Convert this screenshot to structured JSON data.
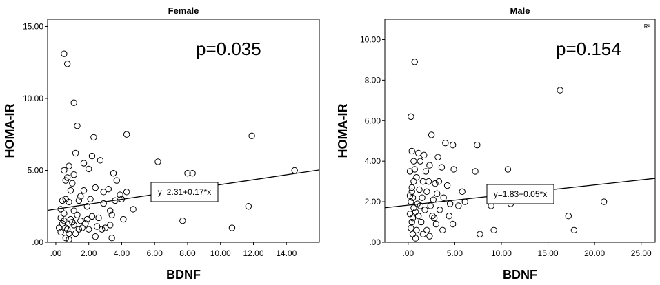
{
  "chart_data": [
    {
      "type": "scatter",
      "title": "Female",
      "xlabel": "BDNF",
      "ylabel": "HOMA-IR",
      "xlim": [
        -0.5,
        16
      ],
      "ylim": [
        0,
        15.5
      ],
      "xticks": [
        0,
        2,
        4,
        6,
        8,
        10,
        12,
        14
      ],
      "xtick_labels": [
        ".00",
        "2.00",
        "4.00",
        "6.00",
        "8.00",
        "10.00",
        "12.00",
        "14.00"
      ],
      "yticks": [
        0,
        5,
        10,
        15
      ],
      "ytick_labels": [
        ".00",
        "5.00",
        "10.00",
        "15.00"
      ],
      "annotation": "p=0.035",
      "fit_label": "y=2.31+0.17*x",
      "fit": {
        "intercept": 2.31,
        "slope": 0.17
      },
      "points": [
        [
          0.5,
          13.1
        ],
        [
          0.7,
          12.4
        ],
        [
          1.1,
          9.7
        ],
        [
          1.3,
          8.1
        ],
        [
          2.3,
          7.3
        ],
        [
          4.3,
          7.5
        ],
        [
          11.9,
          7.4
        ],
        [
          1.2,
          6.2
        ],
        [
          2.2,
          6.0
        ],
        [
          2.7,
          5.7
        ],
        [
          6.2,
          5.6
        ],
        [
          1.7,
          5.5
        ],
        [
          0.8,
          5.3
        ],
        [
          0.5,
          5.0
        ],
        [
          2.0,
          5.1
        ],
        [
          3.5,
          4.8
        ],
        [
          8.0,
          4.8
        ],
        [
          8.3,
          4.8
        ],
        [
          14.5,
          5.0
        ],
        [
          1.1,
          4.7
        ],
        [
          0.7,
          4.5
        ],
        [
          0.6,
          4.3
        ],
        [
          3.7,
          4.3
        ],
        [
          1.0,
          4.1
        ],
        [
          2.4,
          3.8
        ],
        [
          3.2,
          3.7
        ],
        [
          0.9,
          3.6
        ],
        [
          1.7,
          3.6
        ],
        [
          2.9,
          3.5
        ],
        [
          3.9,
          3.3
        ],
        [
          4.3,
          3.5
        ],
        [
          4.0,
          3.0
        ],
        [
          3.6,
          2.9
        ],
        [
          0.4,
          2.9
        ],
        [
          0.6,
          3.0
        ],
        [
          1.4,
          2.9
        ],
        [
          1.5,
          3.2
        ],
        [
          2.1,
          3.0
        ],
        [
          0.8,
          2.8
        ],
        [
          2.9,
          2.7
        ],
        [
          1.9,
          2.5
        ],
        [
          0.3,
          2.3
        ],
        [
          1.1,
          2.2
        ],
        [
          3.3,
          2.2
        ],
        [
          4.7,
          2.3
        ],
        [
          0.5,
          2.0
        ],
        [
          1.3,
          1.9
        ],
        [
          2.2,
          1.8
        ],
        [
          3.4,
          1.9
        ],
        [
          11.7,
          2.5
        ],
        [
          0.3,
          1.7
        ],
        [
          0.9,
          1.6
        ],
        [
          1.9,
          1.6
        ],
        [
          4.1,
          1.6
        ],
        [
          7.7,
          1.5
        ],
        [
          0.4,
          1.3
        ],
        [
          1.1,
          1.2
        ],
        [
          1.8,
          1.3
        ],
        [
          2.5,
          1.1
        ],
        [
          3.3,
          1.2
        ],
        [
          10.7,
          1.0
        ],
        [
          0.2,
          1.0
        ],
        [
          0.6,
          1.0
        ],
        [
          1.4,
          0.9
        ],
        [
          2.0,
          0.9
        ],
        [
          0.3,
          0.7
        ],
        [
          0.8,
          0.6
        ],
        [
          1.2,
          0.6
        ],
        [
          0.6,
          0.3
        ],
        [
          2.4,
          0.4
        ],
        [
          3.4,
          0.3
        ],
        [
          0.8,
          0.2
        ],
        [
          1.6,
          1.0
        ],
        [
          2.8,
          0.9
        ],
        [
          0.5,
          1.5
        ],
        [
          1.0,
          1.4
        ],
        [
          1.5,
          1.5
        ],
        [
          2.6,
          1.7
        ],
        [
          3.0,
          1.0
        ],
        [
          0.7,
          0.9
        ]
      ]
    },
    {
      "type": "scatter",
      "title": "Male",
      "xlabel": "BDNF",
      "ylabel": "HOMA-IR",
      "xlim": [
        -2.5,
        26.5
      ],
      "ylim": [
        0,
        11
      ],
      "xticks": [
        0,
        5,
        10,
        15,
        20,
        25
      ],
      "xtick_labels": [
        ".00",
        "5.00",
        "10.00",
        "15.00",
        "20.00",
        "25.00"
      ],
      "yticks": [
        0,
        2,
        4,
        6,
        8,
        10
      ],
      "ytick_labels": [
        ".00",
        "2.00",
        "4.00",
        "6.00",
        "8.00",
        "10.00"
      ],
      "annotation": "p=0.154",
      "corner_label": "R²",
      "fit_label": "y=1.83+0.05*x",
      "fit": {
        "intercept": 1.83,
        "slope": 0.05
      },
      "points": [
        [
          0.7,
          8.9
        ],
        [
          16.3,
          7.5
        ],
        [
          0.3,
          6.2
        ],
        [
          2.5,
          5.3
        ],
        [
          4.0,
          4.9
        ],
        [
          4.8,
          4.8
        ],
        [
          7.4,
          4.8
        ],
        [
          0.4,
          4.5
        ],
        [
          1.1,
          4.4
        ],
        [
          1.7,
          4.3
        ],
        [
          3.2,
          4.2
        ],
        [
          0.6,
          4.0
        ],
        [
          1.3,
          4.0
        ],
        [
          2.3,
          3.8
        ],
        [
          3.6,
          3.7
        ],
        [
          4.9,
          3.6
        ],
        [
          10.7,
          3.6
        ],
        [
          7.2,
          3.5
        ],
        [
          0.2,
          3.5
        ],
        [
          0.9,
          3.2
        ],
        [
          1.6,
          3.0
        ],
        [
          2.2,
          3.0
        ],
        [
          2.9,
          2.9
        ],
        [
          4.2,
          2.8
        ],
        [
          0.4,
          2.7
        ],
        [
          1.2,
          2.6
        ],
        [
          2.0,
          2.5
        ],
        [
          3.1,
          2.4
        ],
        [
          5.8,
          2.5
        ],
        [
          0.5,
          2.2
        ],
        [
          1.5,
          2.2
        ],
        [
          2.7,
          2.1
        ],
        [
          3.8,
          2.2
        ],
        [
          0.3,
          2.0
        ],
        [
          1.0,
          1.9
        ],
        [
          2.4,
          1.8
        ],
        [
          4.5,
          1.9
        ],
        [
          6.1,
          2.0
        ],
        [
          11.0,
          1.9
        ],
        [
          21.0,
          2.0
        ],
        [
          0.6,
          1.7
        ],
        [
          1.8,
          1.6
        ],
        [
          3.4,
          1.6
        ],
        [
          8.9,
          1.8
        ],
        [
          0.2,
          1.4
        ],
        [
          1.1,
          1.3
        ],
        [
          2.6,
          1.3
        ],
        [
          4.4,
          1.3
        ],
        [
          5.4,
          1.8
        ],
        [
          0.4,
          1.0
        ],
        [
          1.4,
          1.0
        ],
        [
          3.0,
          0.9
        ],
        [
          4.8,
          0.9
        ],
        [
          17.2,
          1.3
        ],
        [
          0.3,
          0.7
        ],
        [
          0.9,
          0.6
        ],
        [
          2.0,
          0.6
        ],
        [
          3.7,
          0.6
        ],
        [
          9.2,
          0.6
        ],
        [
          17.8,
          0.6
        ],
        [
          0.5,
          0.4
        ],
        [
          1.6,
          0.4
        ],
        [
          7.7,
          0.4
        ],
        [
          0.8,
          0.2
        ],
        [
          2.3,
          0.3
        ],
        [
          0.4,
          2.5
        ],
        [
          0.6,
          3.0
        ],
        [
          0.8,
          1.5
        ],
        [
          1.3,
          1.8
        ],
        [
          0.2,
          2.3
        ],
        [
          0.7,
          3.6
        ],
        [
          1.9,
          3.5
        ],
        [
          2.8,
          1.2
        ],
        [
          3.3,
          3.0
        ],
        [
          0.5,
          1.2
        ]
      ]
    }
  ]
}
